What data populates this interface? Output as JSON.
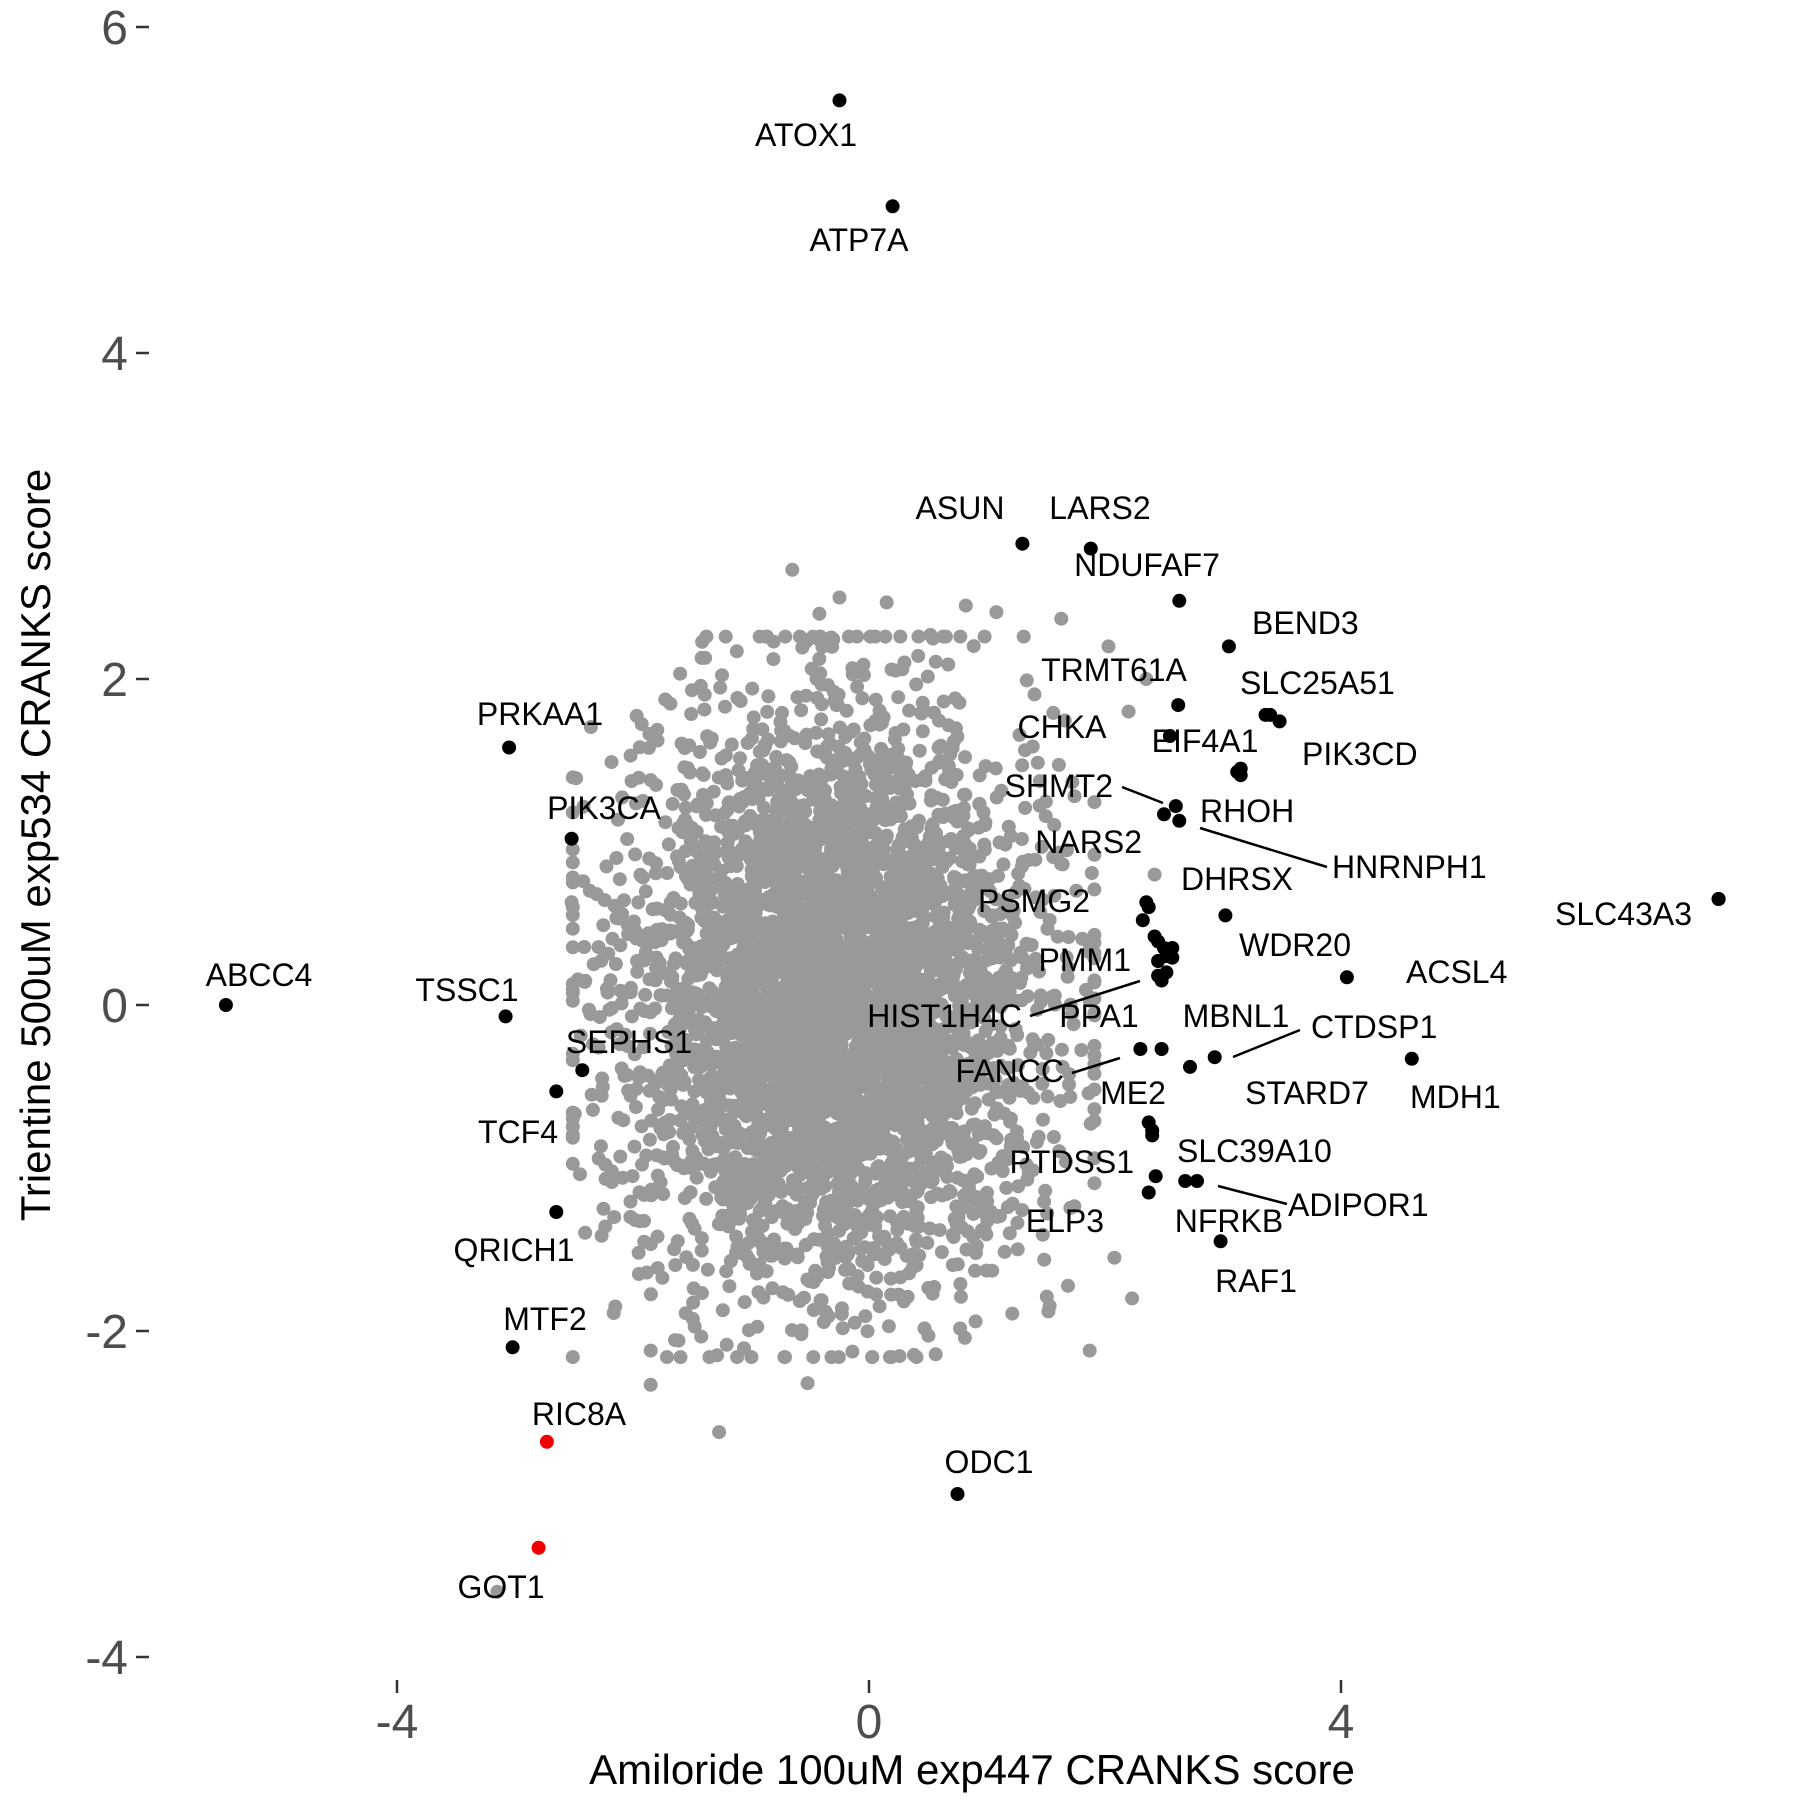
{
  "chart_data": {
    "type": "scatter",
    "title": "",
    "xlabel": "Amiloride 100uM exp447 CRANKS score",
    "ylabel": "Trientine 500uM exp534 CRANKS score",
    "xlim": [
      -5.8,
      7.6
    ],
    "ylim": [
      -4.0,
      6.15
    ],
    "x_ticks": [
      -4,
      0,
      4
    ],
    "x_tick_labels": [
      "-4",
      "0",
      "4"
    ],
    "y_ticks": [
      -4,
      -2,
      0,
      2,
      4,
      6
    ],
    "y_tick_labels": [
      "-4",
      "-2",
      "0",
      "2",
      "4",
      "6"
    ],
    "grid": false,
    "legend": "none",
    "colors": {
      "background": "#ffffff",
      "point": "#999999",
      "highlight": "#000000",
      "red": "#ee0000"
    },
    "background_cloud": {
      "color": "#999999",
      "center": [
        -0.3,
        0.05
      ],
      "sd": [
        0.85,
        0.85
      ],
      "n_points": 4500,
      "outlier_points": [
        [
          -0.65,
          2.67
        ],
        [
          -0.25,
          2.5
        ],
        [
          0.15,
          2.47
        ],
        [
          0.82,
          2.45
        ],
        [
          1.08,
          2.41
        ],
        [
          1.63,
          2.37
        ],
        [
          -1.12,
          2.17
        ],
        [
          -0.42,
          2.4
        ],
        [
          0.52,
          2.27
        ],
        [
          2.03,
          2.2
        ],
        [
          2.2,
          1.8
        ],
        [
          2.35,
          2.0
        ],
        [
          -1.22,
          1.83
        ],
        [
          -2.02,
          1.53
        ],
        [
          -1.85,
          1.38
        ],
        [
          -2.52,
          0.63
        ],
        [
          -2.22,
          0.1
        ],
        [
          -2.35,
          -0.55
        ],
        [
          -2.25,
          -1.25
        ],
        [
          -1.95,
          -1.65
        ],
        [
          -1.85,
          -2.12
        ],
        [
          -1.85,
          -2.33
        ],
        [
          -2.15,
          -1.85
        ],
        [
          -1.27,
          -2.62
        ],
        [
          -0.52,
          -2.32
        ],
        [
          1.87,
          -2.12
        ],
        [
          2.08,
          -1.55
        ],
        [
          1.0,
          -1.3
        ],
        [
          2.42,
          0.8
        ],
        [
          -1.05,
          0.02
        ],
        [
          1.3,
          -0.5
        ],
        [
          2.23,
          -1.8
        ],
        [
          1.52,
          -1.88
        ],
        [
          -3.15,
          -3.6
        ]
      ]
    },
    "highlighted_points": [
      {
        "label": "ATOX1",
        "x": -0.25,
        "y": 5.55,
        "color": "#000000"
      },
      {
        "label": "ATP7A",
        "x": 0.2,
        "y": 4.9,
        "color": "#000000"
      },
      {
        "label": "ASUN",
        "x": 1.3,
        "y": 2.83,
        "color": "#000000"
      },
      {
        "label": "LARS2",
        "x": 1.88,
        "y": 2.8,
        "color": "#000000"
      },
      {
        "label": "NDUFAF7",
        "x": 2.63,
        "y": 2.48,
        "color": "#000000"
      },
      {
        "label": "BEND3",
        "x": 3.05,
        "y": 2.2,
        "color": "#000000"
      },
      {
        "label": "TRMT61A",
        "x": 2.62,
        "y": 1.84,
        "color": "#000000"
      },
      {
        "label": "SLC25A51",
        "x": 3.4,
        "y": 1.78,
        "color": "#000000"
      },
      {
        "label": "PIK3CD",
        "x": 3.48,
        "y": 1.74,
        "color": "#000000"
      },
      {
        "label": "CHKA",
        "x": 2.55,
        "y": 1.65,
        "color": "#000000"
      },
      {
        "label": "EIF4A1",
        "x": 3.12,
        "y": 1.43,
        "color": "#000000"
      },
      {
        "label": "RHOH",
        "x": 3.15,
        "y": 1.41,
        "color": "#000000"
      },
      {
        "label": "SHMT2",
        "x": 2.5,
        "y": 1.17,
        "color": "#000000"
      },
      {
        "label": "HNRNPH1",
        "x": 2.63,
        "y": 1.13,
        "color": "#000000"
      },
      {
        "label": "NARS2",
        "x": 2.6,
        "y": 1.22,
        "color": "#000000"
      },
      {
        "label": "DHRSX",
        "x": 3.02,
        "y": 0.55,
        "color": "#000000"
      },
      {
        "label": "PSMG2",
        "x": 2.35,
        "y": 0.63,
        "color": "#000000"
      },
      {
        "label": "PMM1",
        "x": 2.42,
        "y": 0.42,
        "color": "#000000"
      },
      {
        "label": "WDR20",
        "x": 4.05,
        "y": 0.17,
        "color": "#000000"
      },
      {
        "label": "ACSL4",
        "x": 7.2,
        "y": 0.65,
        "color": "#000000"
      },
      {
        "label": "SLC43A3",
        "x": 7.2,
        "y": 0.65,
        "color": "#000000"
      },
      {
        "label": "HIST1H4C",
        "x": 2.45,
        "y": 0.27,
        "color": "#000000"
      },
      {
        "label": "PPA1",
        "x": 2.52,
        "y": 0.2,
        "color": "#000000"
      },
      {
        "label": "MBNL1",
        "x": 2.57,
        "y": 0.29,
        "color": "#000000"
      },
      {
        "label": "CTDSP1",
        "x": 2.93,
        "y": -0.32,
        "color": "#000000"
      },
      {
        "label": "FANCC",
        "x": 2.3,
        "y": -0.27,
        "color": "#000000"
      },
      {
        "label": "ME2",
        "x": 2.48,
        "y": -0.27,
        "color": "#000000"
      },
      {
        "label": "STARD7",
        "x": 2.72,
        "y": -0.38,
        "color": "#000000"
      },
      {
        "label": "MDH1",
        "x": 4.6,
        "y": -0.33,
        "color": "#000000"
      },
      {
        "label": "SLC39A10",
        "x": 2.4,
        "y": -0.77,
        "color": "#000000"
      },
      {
        "label": "PTDSS1",
        "x": 2.37,
        "y": -0.72,
        "color": "#000000"
      },
      {
        "label": "ADIPOR1",
        "x": 2.78,
        "y": -1.08,
        "color": "#000000"
      },
      {
        "label": "ELP3",
        "x": 2.37,
        "y": -1.15,
        "color": "#000000"
      },
      {
        "label": "NFRKB",
        "x": 2.68,
        "y": -1.08,
        "color": "#000000"
      },
      {
        "label": "RAF1",
        "x": 2.98,
        "y": -1.45,
        "color": "#000000"
      },
      {
        "label": "ODC1",
        "x": 0.75,
        "y": -3.0,
        "color": "#000000"
      },
      {
        "label": "PRKAA1",
        "x": -3.05,
        "y": 1.58,
        "color": "#000000"
      },
      {
        "label": "PIK3CA",
        "x": -2.52,
        "y": 1.02,
        "color": "#000000"
      },
      {
        "label": "ABCC4",
        "x": -5.45,
        "y": 0.0,
        "color": "#000000"
      },
      {
        "label": "TSSC1",
        "x": -3.08,
        "y": -0.07,
        "color": "#000000"
      },
      {
        "label": "SEPHS1",
        "x": -2.43,
        "y": -0.4,
        "color": "#000000"
      },
      {
        "label": "TCF4",
        "x": -2.65,
        "y": -0.53,
        "color": "#000000"
      },
      {
        "label": "QRICH1",
        "x": -2.65,
        "y": -1.27,
        "color": "#000000"
      },
      {
        "label": "MTF2",
        "x": -3.02,
        "y": -2.1,
        "color": "#000000"
      },
      {
        "label": "RIC8A",
        "x": -2.73,
        "y": -2.68,
        "color": "#ee0000"
      },
      {
        "label": "GOT1",
        "x": -2.8,
        "y": -3.33,
        "color": "#ee0000"
      }
    ],
    "extra_points": [
      {
        "x": 2.45,
        "y": 0.39,
        "color": "#000000"
      },
      {
        "x": 2.5,
        "y": 0.35,
        "color": "#000000"
      },
      {
        "x": 2.57,
        "y": 0.35,
        "color": "#000000"
      },
      {
        "x": 2.52,
        "y": 0.3,
        "color": "#000000"
      },
      {
        "x": 2.45,
        "y": 0.18,
        "color": "#000000"
      },
      {
        "x": 2.48,
        "y": 0.15,
        "color": "#000000"
      },
      {
        "x": 2.32,
        "y": 0.52,
        "color": "#000000"
      },
      {
        "x": 2.37,
        "y": 0.6,
        "color": "#000000"
      },
      {
        "x": 3.15,
        "y": 1.45,
        "color": "#000000"
      },
      {
        "x": 3.36,
        "y": 1.78,
        "color": "#000000"
      },
      {
        "x": 2.4,
        "y": -0.8,
        "color": "#000000"
      },
      {
        "x": 2.43,
        "y": -1.05,
        "color": "#000000"
      }
    ],
    "labels": [
      {
        "text": "ATOX1",
        "anchor": "middle"
      },
      {
        "text": "ATP7A",
        "anchor": "middle"
      },
      {
        "text": "ASUN",
        "anchor": "middle"
      },
      {
        "text": "LARS2",
        "anchor": "middle"
      },
      {
        "text": "NDUFAF7",
        "anchor": "middle"
      },
      {
        "text": "BEND3",
        "anchor": "start"
      },
      {
        "text": "TRMT61A",
        "anchor": "middle"
      },
      {
        "text": "SLC25A51",
        "anchor": "start"
      },
      {
        "text": "PIK3CD",
        "anchor": "start"
      },
      {
        "text": "CHKA",
        "anchor": "middle"
      },
      {
        "text": "EIF4A1",
        "anchor": "middle"
      },
      {
        "text": "RHOH",
        "anchor": "start"
      },
      {
        "text": "SHMT2",
        "anchor": "end"
      },
      {
        "text": "HNRNPH1",
        "anchor": "start"
      },
      {
        "text": "NARS2",
        "anchor": "end"
      },
      {
        "text": "DHRSX",
        "anchor": "middle"
      },
      {
        "text": "PSMG2",
        "anchor": "end"
      },
      {
        "text": "PMM1",
        "anchor": "end"
      },
      {
        "text": "WDR20",
        "anchor": "middle"
      },
      {
        "text": "ACSL4",
        "anchor": "start"
      },
      {
        "text": "SLC43A3",
        "anchor": "end"
      },
      {
        "text": "HIST1H4C",
        "anchor": "end"
      },
      {
        "text": "PPA1",
        "anchor": "middle"
      },
      {
        "text": "MBNL1",
        "anchor": "middle"
      },
      {
        "text": "CTDSP1",
        "anchor": "start"
      },
      {
        "text": "FANCC",
        "anchor": "end"
      },
      {
        "text": "ME2",
        "anchor": "middle"
      },
      {
        "text": "STARD7",
        "anchor": "middle"
      },
      {
        "text": "MDH1",
        "anchor": "start"
      },
      {
        "text": "SLC39A10",
        "anchor": "start"
      },
      {
        "text": "PTDSS1",
        "anchor": "end"
      },
      {
        "text": "ADIPOR1",
        "anchor": "start"
      },
      {
        "text": "ELP3",
        "anchor": "end"
      },
      {
        "text": "NFRKB",
        "anchor": "middle"
      },
      {
        "text": "RAF1",
        "anchor": "middle"
      },
      {
        "text": "ODC1",
        "anchor": "middle"
      },
      {
        "text": "PRKAA1",
        "anchor": "middle"
      },
      {
        "text": "PIK3CA",
        "anchor": "middle"
      },
      {
        "text": "ABCC4",
        "anchor": "middle"
      },
      {
        "text": "TSSC1",
        "anchor": "middle"
      },
      {
        "text": "SEPHS1",
        "anchor": "middle"
      },
      {
        "text": "TCF4",
        "anchor": "middle"
      },
      {
        "text": "QRICH1",
        "anchor": "middle"
      },
      {
        "text": "MTF2",
        "anchor": "middle"
      },
      {
        "text": "RIC8A",
        "anchor": "middle"
      },
      {
        "text": "GOT1",
        "anchor": "middle"
      }
    ]
  }
}
